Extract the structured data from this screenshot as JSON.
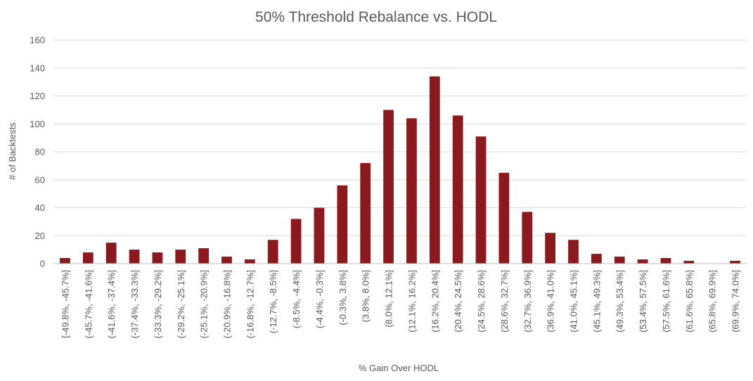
{
  "chart_data": {
    "type": "bar",
    "title": "50% Threshold Rebalance vs. HODL",
    "xlabel": "% Gain Over HODL",
    "ylabel": "# of Backtests",
    "ylim": [
      0,
      160
    ],
    "yticks": [
      0,
      20,
      40,
      60,
      80,
      100,
      120,
      140,
      160
    ],
    "grid": true,
    "bar_color": "#8B1A1E",
    "categories": [
      "[-49.8%, -45.7%]",
      "(-45.7%, -41.6%]",
      "(-41.6%, -37.4%]",
      "(-37.4%, -33.3%]",
      "(-33.3%, -29.2%]",
      "(-29.2%, -25.1%]",
      "(-25.1%, -20.9%]",
      "(-20.9%, -16.8%]",
      "(-16.8%, -12.7%]",
      "(-12.7%, -8.5%]",
      "(-8.5%, -4.4%]",
      "(-4.4%, -0.3%]",
      "(-0.3%, 3.8%]",
      "(3.8%, 8.0%]",
      "(8.0%, 12.1%]",
      "(12.1%, 16.2%]",
      "(16.2%, 20.4%]",
      "(20.4%, 24.5%]",
      "(24.5%, 28.6%]",
      "(28.6%, 32.7%]",
      "(32.7%, 36.9%]",
      "(36.9%, 41.0%]",
      "(41.0%, 45.1%]",
      "(45.1%, 49.3%]",
      "(49.3%, 53.4%]",
      "(53.4%, 57.5%]",
      "(57.5%, 61.6%]",
      "(61.6%, 65.8%]",
      "(65.8%, 69.9%]",
      "(69.9%, 74.0%]"
    ],
    "values": [
      4,
      8,
      15,
      10,
      8,
      10,
      11,
      5,
      3,
      17,
      32,
      40,
      56,
      72,
      110,
      104,
      134,
      106,
      91,
      65,
      37,
      22,
      17,
      7,
      5,
      3,
      4,
      2,
      0,
      2
    ]
  }
}
